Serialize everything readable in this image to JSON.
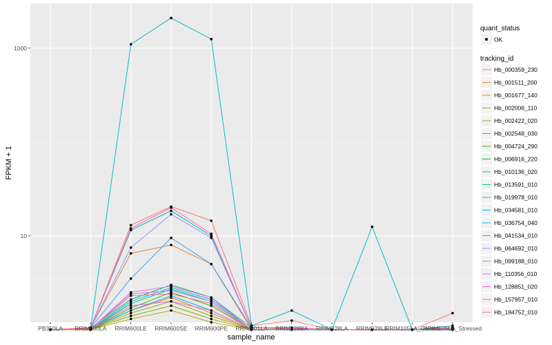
{
  "chart_data": {
    "type": "line",
    "xlabel": "sample_name",
    "ylabel": "FPKM + 1",
    "y_scale": "log10",
    "ylim": [
      1.2,
      3000
    ],
    "y_ticks": [
      10,
      1000
    ],
    "categories": [
      "PB350LA",
      "RRIM600LA",
      "RRIM600LE",
      "RRIM600SE",
      "RRIM600PE",
      "RRIM901LA",
      "RRIM928BA",
      "RRIM928LA",
      "RRIM928LE",
      "RRIM105LA_Control",
      "RRIM105LA_Stressed"
    ],
    "background": "#ebebeb",
    "grid": true,
    "point_legend": {
      "title": "quant_status",
      "label": "OK"
    },
    "legend_title": "tracking_id",
    "series": [
      {
        "name": "Hb_000359_230",
        "color": "#F8766D",
        "values": [
          1.0,
          1.05,
          13.0,
          20.5,
          14.5,
          1.1,
          1.25,
          1.0,
          1.0,
          1.0,
          1.5
        ]
      },
      {
        "name": "Hb_001511_200",
        "color": "#EA8331",
        "values": [
          1.0,
          1.05,
          6.5,
          8.0,
          5.0,
          1.0,
          1.05,
          1.0,
          1.0,
          1.0,
          1.05
        ]
      },
      {
        "name": "Hb_001677_140",
        "color": "#D89000",
        "values": [
          1.0,
          1.0,
          1.6,
          2.2,
          1.5,
          1.0,
          1.02,
          1.0,
          1.0,
          1.0,
          1.02
        ]
      },
      {
        "name": "Hb_002006_110",
        "color": "#C09B00",
        "values": [
          1.0,
          1.0,
          1.3,
          1.6,
          1.2,
          1.0,
          1.0,
          1.0,
          1.0,
          1.0,
          1.0
        ]
      },
      {
        "name": "Hb_002422_020",
        "color": "#A3A500",
        "values": [
          1.0,
          1.0,
          1.5,
          2.0,
          1.4,
          1.0,
          1.02,
          1.0,
          1.0,
          1.0,
          1.02
        ]
      },
      {
        "name": "Hb_002548_030",
        "color": "#7CAE00",
        "values": [
          1.0,
          1.0,
          1.4,
          1.8,
          1.3,
          1.0,
          1.0,
          1.0,
          1.0,
          1.0,
          1.0
        ]
      },
      {
        "name": "Hb_004724_290",
        "color": "#39B600",
        "values": [
          1.0,
          1.02,
          1.7,
          2.5,
          1.8,
          1.0,
          1.02,
          1.0,
          1.0,
          1.0,
          1.02
        ]
      },
      {
        "name": "Hb_006916_220",
        "color": "#00BB4E",
        "values": [
          1.0,
          1.05,
          2.1,
          3.0,
          2.2,
          1.05,
          1.05,
          1.0,
          1.0,
          1.0,
          1.05
        ]
      },
      {
        "name": "Hb_010136_020",
        "color": "#00BF7D",
        "values": [
          1.0,
          1.02,
          1.9,
          2.7,
          2.0,
          1.0,
          1.02,
          1.0,
          1.0,
          1.0,
          1.02
        ]
      },
      {
        "name": "Hb_013591_010",
        "color": "#00C1A3",
        "values": [
          1.0,
          1.05,
          11.5,
          18.5,
          10.0,
          1.05,
          1.05,
          1.0,
          1.0,
          1.0,
          1.05
        ]
      },
      {
        "name": "Hb_019978_010",
        "color": "#00BFC4",
        "values": [
          1.0,
          1.05,
          1100,
          2100,
          1250,
          1.1,
          1.6,
          1.0,
          12.5,
          1.0,
          1.1
        ]
      },
      {
        "name": "Hb_034581_010",
        "color": "#00BAE0",
        "values": [
          1.0,
          1.02,
          2.0,
          2.8,
          2.1,
          1.0,
          1.02,
          1.0,
          1.0,
          1.0,
          1.02
        ]
      },
      {
        "name": "Hb_036754_040",
        "color": "#00B0F6",
        "values": [
          1.0,
          1.02,
          1.6,
          2.3,
          1.6,
          1.0,
          1.0,
          1.0,
          1.0,
          1.0,
          1.0
        ]
      },
      {
        "name": "Hb_041534_010",
        "color": "#35A2FF",
        "values": [
          1.0,
          1.05,
          3.5,
          9.5,
          5.0,
          1.05,
          1.05,
          1.0,
          1.0,
          1.0,
          1.05
        ]
      },
      {
        "name": "Hb_064692_010",
        "color": "#9590FF",
        "values": [
          1.0,
          1.05,
          7.5,
          17.0,
          9.5,
          1.05,
          1.05,
          1.0,
          1.0,
          1.0,
          1.05
        ]
      },
      {
        "name": "Hb_099188_010",
        "color": "#C77CFF",
        "values": [
          1.0,
          1.02,
          2.4,
          2.6,
          2.0,
          1.0,
          1.02,
          1.0,
          1.0,
          1.0,
          1.02
        ]
      },
      {
        "name": "Hb_110356_010",
        "color": "#E76BF3",
        "values": [
          1.0,
          1.02,
          2.5,
          2.9,
          2.2,
          1.0,
          1.02,
          1.0,
          1.0,
          1.0,
          1.02
        ]
      },
      {
        "name": "Hb_128851_020",
        "color": "#FA62DB",
        "values": [
          1.0,
          1.02,
          1.8,
          2.0,
          1.6,
          1.0,
          1.02,
          1.0,
          1.0,
          1.0,
          1.02
        ]
      },
      {
        "name": "Hb_157957_010",
        "color": "#FF62BC",
        "values": [
          1.0,
          1.05,
          12.0,
          20.0,
          10.5,
          1.05,
          1.05,
          1.0,
          1.0,
          1.0,
          1.05
        ]
      },
      {
        "name": "Hb_184752_010",
        "color": "#FF6C91",
        "values": [
          1.0,
          1.02,
          2.3,
          2.4,
          1.9,
          1.0,
          1.02,
          1.0,
          1.0,
          1.0,
          1.02
        ]
      }
    ]
  }
}
